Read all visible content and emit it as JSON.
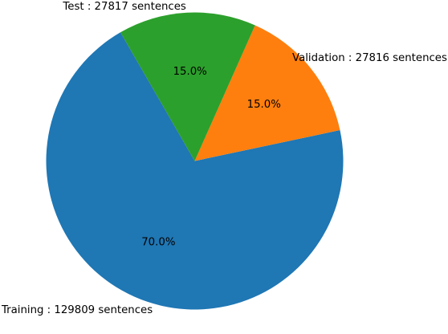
{
  "chart_data": {
    "type": "pie",
    "title": "",
    "start_angle_deg": 120,
    "direction": "counterclockwise",
    "slices": [
      {
        "label": "Training : 129809 sentences",
        "value": 129809,
        "pct_label": "70.0%",
        "color": "#1f77b4"
      },
      {
        "label": "Validation : 27816 sentences",
        "value": 27816,
        "pct_label": "15.0%",
        "color": "#ff7f0e"
      },
      {
        "label": "Test : 27817 sentences",
        "value": 27817,
        "pct_label": "15.0%",
        "color": "#2ca02c"
      }
    ]
  }
}
